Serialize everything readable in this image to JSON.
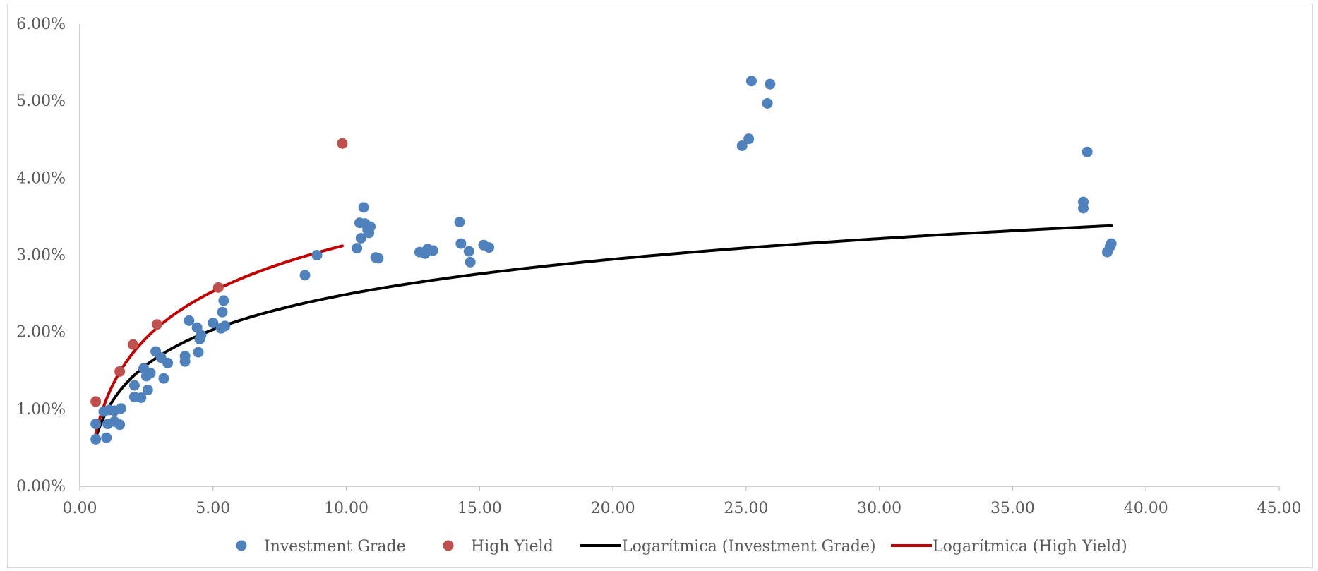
{
  "chart_data": {
    "type": "scatter",
    "title": "",
    "xlabel": "",
    "ylabel": "",
    "xlim": [
      0,
      45
    ],
    "ylim": [
      0,
      0.06
    ],
    "x_ticks": [
      0,
      5,
      10,
      15,
      20,
      25,
      30,
      35,
      40,
      45
    ],
    "y_ticks": [
      0,
      0.01,
      0.02,
      0.03,
      0.04,
      0.05,
      0.06
    ],
    "x_tick_labels": [
      "0.00",
      "5.00",
      "10.00",
      "15.00",
      "20.00",
      "25.00",
      "30.00",
      "35.00",
      "40.00",
      "45.00"
    ],
    "y_tick_labels": [
      "0.00%",
      "1.00%",
      "2.00%",
      "3.00%",
      "4.00%",
      "5.00%",
      "6.00%"
    ],
    "grid": false,
    "legend_position": "bottom",
    "series": [
      {
        "name": "Investment Grade",
        "kind": "scatter",
        "color": "#4F81BD",
        "points": [
          [
            0.6,
            0.0061
          ],
          [
            0.6,
            0.0081
          ],
          [
            0.9,
            0.0097
          ],
          [
            1.0,
            0.0063
          ],
          [
            1.05,
            0.0081
          ],
          [
            1.1,
            0.0099
          ],
          [
            1.3,
            0.0084
          ],
          [
            1.3,
            0.0098
          ],
          [
            1.5,
            0.008
          ],
          [
            1.55,
            0.0101
          ],
          [
            2.05,
            0.0116
          ],
          [
            2.05,
            0.0131
          ],
          [
            2.3,
            0.0115
          ],
          [
            2.4,
            0.0153
          ],
          [
            2.5,
            0.0143
          ],
          [
            2.55,
            0.0125
          ],
          [
            2.65,
            0.0147
          ],
          [
            2.85,
            0.0175
          ],
          [
            3.05,
            0.0167
          ],
          [
            3.15,
            0.014
          ],
          [
            3.3,
            0.016
          ],
          [
            3.95,
            0.0169
          ],
          [
            3.95,
            0.0162
          ],
          [
            4.1,
            0.0215
          ],
          [
            4.4,
            0.0206
          ],
          [
            4.45,
            0.0174
          ],
          [
            4.5,
            0.0191
          ],
          [
            4.55,
            0.0196
          ],
          [
            5.0,
            0.0212
          ],
          [
            5.3,
            0.0205
          ],
          [
            5.35,
            0.0226
          ],
          [
            5.4,
            0.0241
          ],
          [
            5.45,
            0.0208
          ],
          [
            8.45,
            0.0274
          ],
          [
            8.9,
            0.03
          ],
          [
            10.4,
            0.0309
          ],
          [
            10.5,
            0.0342
          ],
          [
            10.55,
            0.0322
          ],
          [
            10.65,
            0.0362
          ],
          [
            10.7,
            0.0341
          ],
          [
            10.8,
            0.0333
          ],
          [
            10.85,
            0.0329
          ],
          [
            10.9,
            0.0337
          ],
          [
            11.1,
            0.0297
          ],
          [
            11.2,
            0.0296
          ],
          [
            12.75,
            0.0304
          ],
          [
            12.95,
            0.0302
          ],
          [
            13.05,
            0.0308
          ],
          [
            13.25,
            0.0306
          ],
          [
            14.25,
            0.0343
          ],
          [
            14.3,
            0.0315
          ],
          [
            14.6,
            0.0305
          ],
          [
            14.65,
            0.0291
          ],
          [
            15.15,
            0.0313
          ],
          [
            15.35,
            0.031
          ],
          [
            24.85,
            0.0442
          ],
          [
            25.1,
            0.0451
          ],
          [
            25.2,
            0.0526
          ],
          [
            25.8,
            0.0497
          ],
          [
            25.9,
            0.0522
          ],
          [
            37.65,
            0.0369
          ],
          [
            37.65,
            0.0361
          ],
          [
            37.8,
            0.0434
          ],
          [
            38.55,
            0.0304
          ],
          [
            38.65,
            0.0311
          ],
          [
            38.7,
            0.0315
          ]
        ]
      },
      {
        "name": "High Yield",
        "kind": "scatter",
        "color": "#C0504D",
        "points": [
          [
            0.6,
            0.011
          ],
          [
            1.5,
            0.0149
          ],
          [
            2.0,
            0.0184
          ],
          [
            2.9,
            0.021
          ],
          [
            5.2,
            0.0258
          ],
          [
            9.85,
            0.0445
          ]
        ]
      },
      {
        "name": "Logarítmica (Investment Grade)",
        "kind": "trendline-log",
        "color": "#000000",
        "x_range": [
          0.6,
          38.7
        ],
        "coefficients": {
          "a": 0.0097,
          "b": 0.0066
        }
      },
      {
        "name": "Logarítmica (High Yield)",
        "kind": "trendline-log",
        "color": "#C00000",
        "x_range": [
          0.6,
          9.85
        ],
        "coefficients": {
          "a": 0.0113,
          "b": 0.0087
        }
      }
    ]
  }
}
